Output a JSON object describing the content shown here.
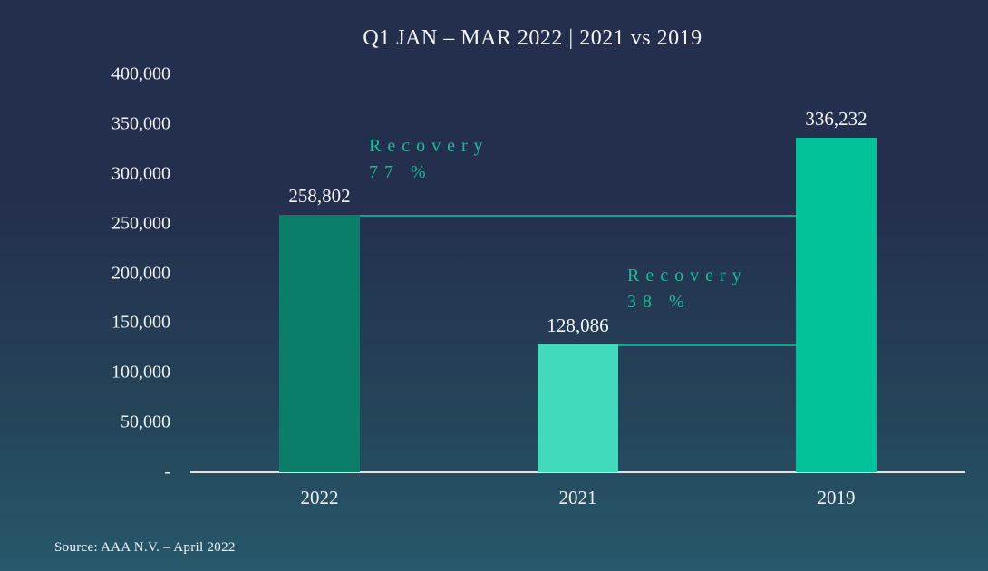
{
  "source": "Source: AAA N.V. – April 2022",
  "colors": {
    "background_top": "#242f4d",
    "background_bottom": "#27586b",
    "axis_line": "#dfe3e8",
    "label_text": "#f2f4f7",
    "recovery_text": "#18bd99",
    "connector_line": "#00ac8e"
  },
  "chart_data": {
    "type": "bar",
    "title": "Q1 JAN – MAR 2022 | 2021 vs 2019",
    "categories": [
      "2022",
      "2021",
      "2019"
    ],
    "values": [
      258802,
      128086,
      336232
    ],
    "bars": [
      {
        "category": "2022",
        "value": 258802,
        "value_label": "258,802",
        "color": "#0b7e69"
      },
      {
        "category": "2021",
        "value": 128086,
        "value_label": "128,086",
        "color": "#41dabd"
      },
      {
        "category": "2019",
        "value": 336232,
        "value_label": "336,232",
        "color": "#02c29b"
      }
    ],
    "y_ticks": [
      "400,000",
      "350,000",
      "300,000",
      "250,000",
      "200,000",
      "150,000",
      "100,000",
      "50,000",
      "-"
    ],
    "ylim": [
      0,
      400000
    ],
    "grid": false,
    "legend": false,
    "annotations": [
      {
        "from": 0,
        "to": 2,
        "line1": "Recovery",
        "line2": "77 %"
      },
      {
        "from": 1,
        "to": 2,
        "line1": "Recovery",
        "line2": "38 %"
      }
    ]
  }
}
